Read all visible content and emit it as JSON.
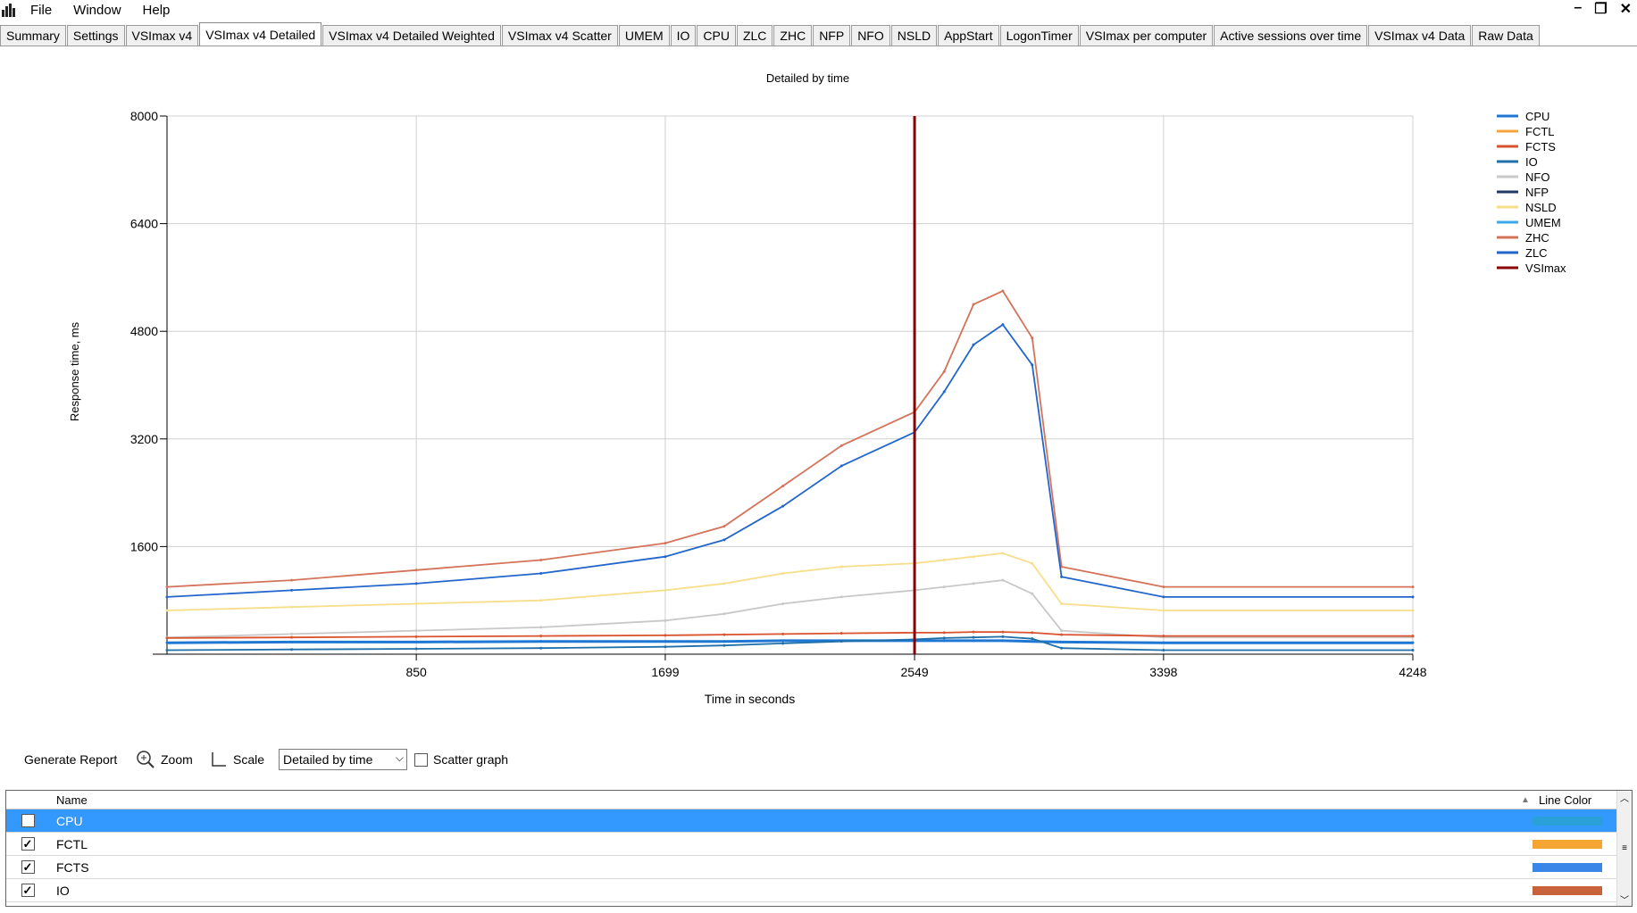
{
  "menu": {
    "file": "File",
    "window": "Window",
    "help": "Help"
  },
  "tabs": [
    "Summary",
    "Settings",
    "VSImax v4",
    "VSImax v4 Detailed",
    "VSImax v4 Detailed Weighted",
    "VSImax v4 Scatter",
    "UMEM",
    "IO",
    "CPU",
    "ZLC",
    "ZHC",
    "NFP",
    "NFO",
    "NSLD",
    "AppStart",
    "LogonTimer",
    "VSImax per computer",
    "Active sessions over time",
    "VSImax v4 Data",
    "Raw Data"
  ],
  "active_tab": "VSImax v4 Detailed",
  "chart_data": {
    "type": "line",
    "title": "Detailed by time",
    "xlabel": "Time in seconds",
    "ylabel": "Response time, ms",
    "xlim": [
      0,
      4248
    ],
    "ylim": [
      0,
      8000
    ],
    "x_ticks": [
      "850",
      "1699",
      "2549",
      "3398",
      "4248"
    ],
    "y_ticks": [
      "1600",
      "3200",
      "4800",
      "6400",
      "8000"
    ],
    "legend": [
      {
        "name": "CPU",
        "color": "#1f77d4"
      },
      {
        "name": "FCTL",
        "color": "#f4a43a"
      },
      {
        "name": "FCTS",
        "color": "#d9522d"
      },
      {
        "name": "IO",
        "color": "#1f6fa8"
      },
      {
        "name": "NFO",
        "color": "#c8c8c8"
      },
      {
        "name": "NFP",
        "color": "#203a68"
      },
      {
        "name": "NSLD",
        "color": "#f7de8a"
      },
      {
        "name": "UMEM",
        "color": "#3ca8e6"
      },
      {
        "name": "ZHC",
        "color": "#d4735a"
      },
      {
        "name": "ZLC",
        "color": "#2266cc"
      },
      {
        "name": "VSImax",
        "color": "#8b0000"
      }
    ],
    "legend_position": "right",
    "vsimax_x": 2549,
    "series": [
      {
        "name": "ZHC",
        "x": [
          0,
          425,
          850,
          1275,
          1699,
          1900,
          2100,
          2300,
          2549,
          2650,
          2750,
          2850,
          2950,
          3050,
          3398,
          4248
        ],
        "values": [
          1000,
          1100,
          1250,
          1400,
          1650,
          1900,
          2500,
          3100,
          3600,
          4200,
          5200,
          5400,
          4700,
          1300,
          1000,
          1000
        ]
      },
      {
        "name": "ZLC",
        "x": [
          0,
          425,
          850,
          1275,
          1699,
          1900,
          2100,
          2300,
          2549,
          2650,
          2750,
          2850,
          2950,
          3050,
          3398,
          4248
        ],
        "values": [
          850,
          950,
          1050,
          1200,
          1450,
          1700,
          2200,
          2800,
          3300,
          3900,
          4600,
          4900,
          4300,
          1150,
          850,
          850
        ]
      },
      {
        "name": "NSLD",
        "x": [
          0,
          425,
          850,
          1275,
          1699,
          1900,
          2100,
          2300,
          2549,
          2650,
          2750,
          2850,
          2950,
          3050,
          3398,
          4248
        ],
        "values": [
          650,
          700,
          750,
          800,
          950,
          1050,
          1200,
          1300,
          1350,
          1400,
          1450,
          1500,
          1350,
          750,
          650,
          650
        ]
      },
      {
        "name": "NFO",
        "x": [
          0,
          425,
          850,
          1275,
          1699,
          1900,
          2100,
          2300,
          2549,
          2650,
          2750,
          2850,
          2950,
          3050,
          3398,
          4248
        ],
        "values": [
          250,
          300,
          350,
          400,
          500,
          600,
          750,
          850,
          950,
          1000,
          1050,
          1100,
          900,
          350,
          250,
          250
        ]
      },
      {
        "name": "FCTS",
        "x": [
          0,
          425,
          850,
          1275,
          1699,
          1900,
          2100,
          2300,
          2549,
          2650,
          2750,
          2850,
          2950,
          3050,
          3398,
          4248
        ],
        "values": [
          240,
          250,
          260,
          270,
          280,
          290,
          300,
          310,
          320,
          320,
          330,
          330,
          320,
          290,
          270,
          270
        ]
      },
      {
        "name": "CPU",
        "x": [
          0,
          425,
          850,
          1275,
          1699,
          1900,
          2100,
          2300,
          2549,
          2650,
          2750,
          2850,
          2950,
          3050,
          3398,
          4248
        ],
        "values": [
          170,
          180,
          180,
          190,
          190,
          190,
          200,
          200,
          200,
          200,
          200,
          200,
          190,
          180,
          170,
          170
        ]
      },
      {
        "name": "IO",
        "x": [
          0,
          425,
          850,
          1275,
          1699,
          1900,
          2100,
          2300,
          2549,
          2650,
          2750,
          2850,
          2950,
          3050,
          3398,
          4248
        ],
        "values": [
          60,
          70,
          80,
          90,
          110,
          130,
          160,
          190,
          220,
          240,
          250,
          260,
          230,
          90,
          60,
          60
        ]
      }
    ]
  },
  "toolbar": {
    "generate": "Generate Report",
    "zoom": "Zoom",
    "scale": "Scale",
    "view_select": "Detailed by time",
    "scatter": "Scatter graph"
  },
  "grid": {
    "col_name": "Name",
    "col_color": "Line Color",
    "rows": [
      {
        "name": "CPU",
        "color": "#2aa0d8",
        "selected": true
      },
      {
        "name": "FCTL",
        "color": "#f5a532",
        "selected": false
      },
      {
        "name": "FCTS",
        "color": "#3a86e8",
        "selected": false
      },
      {
        "name": "IO",
        "color": "#c8623a",
        "selected": false
      }
    ]
  }
}
